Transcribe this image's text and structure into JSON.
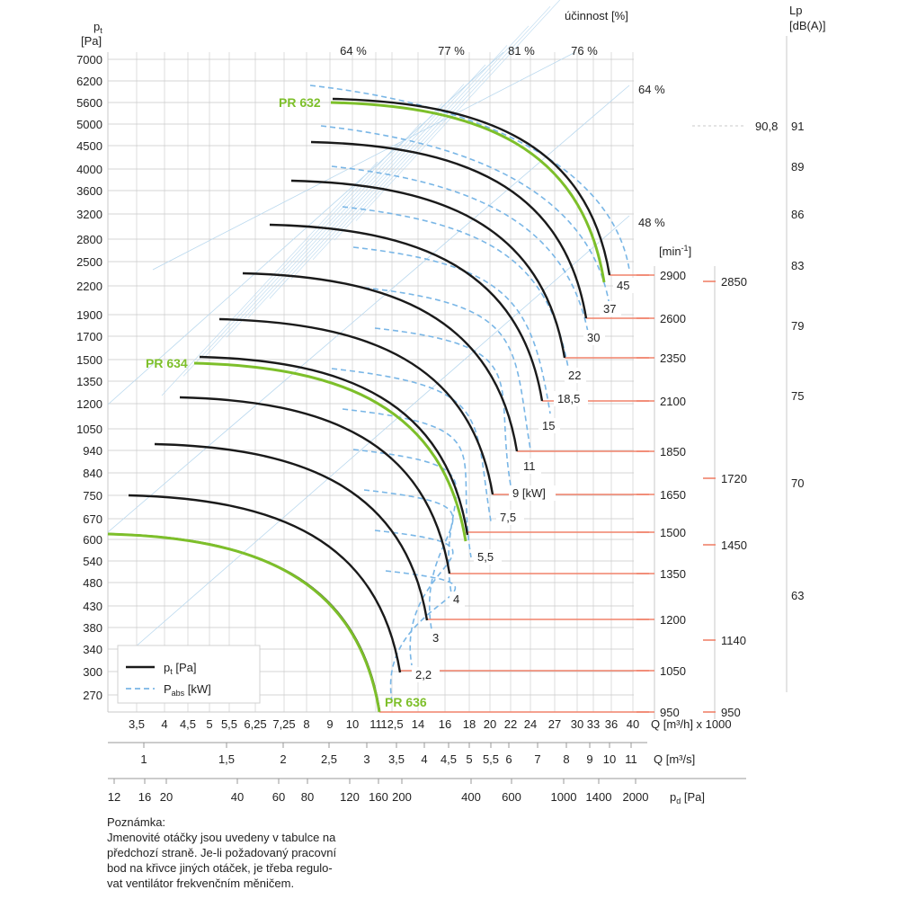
{
  "chart_data": {
    "type": "line",
    "y_label_main": "p",
    "y_label_sub": "t",
    "y_unit": "[Pa]",
    "y_ticks": [
      "7000",
      "6200",
      "5600",
      "5000",
      "4500",
      "4000",
      "3600",
      "3200",
      "2800",
      "2500",
      "2200",
      "1900",
      "1700",
      "1500",
      "1350",
      "1200",
      "1050",
      "940",
      "840",
      "750",
      "670",
      "600",
      "540",
      "480",
      "430",
      "380",
      "340",
      "300",
      "270"
    ],
    "eff_title": "účinnost [%]",
    "eff_top_labels": [
      "64 %",
      "77 %",
      "81 %",
      "76 %"
    ],
    "eff_right_labels": [
      "64 %",
      "48 %"
    ],
    "lp_title": "Lp",
    "lp_unit": "[dB(A)]",
    "lp_ticks": [
      "91",
      "89",
      "86",
      "83",
      "79",
      "75",
      "70",
      "63"
    ],
    "lp_marker": "90,8",
    "rpm_unit_main": "[min",
    "rpm_unit_sup": "-1",
    "rpm_unit_end": "]",
    "rpm_values": [
      "2900",
      "2600",
      "2350",
      "2100",
      "1850",
      "1650",
      "1500",
      "1350",
      "1200",
      "1050",
      "950"
    ],
    "rpm_alt_values": [
      "2850",
      "1720",
      "1450",
      "1140",
      "950"
    ],
    "power_labels": [
      "45",
      "37",
      "30",
      "22",
      "18,5",
      "15",
      "11",
      "9 [kW]",
      "7,5",
      "5,5",
      "4",
      "3",
      "2,2"
    ],
    "fan_models": [
      "PR 632",
      "PR 634",
      "PR 636"
    ],
    "q_h_ticks": [
      "3,5",
      "4",
      "4,5",
      "5",
      "5,5",
      "6,25",
      "7,25",
      "8",
      "9",
      "10",
      "11",
      "12,5",
      "14",
      "16",
      "18",
      "20",
      "22",
      "24",
      "27",
      "30",
      "33",
      "36",
      "40"
    ],
    "q_h_label": "Q [m³/h] x 1000",
    "q_s_ticks": [
      "1",
      "1,5",
      "2",
      "2,5",
      "3",
      "3,5",
      "4",
      "4,5",
      "5",
      "5,5",
      "6",
      "7",
      "8",
      "9",
      "10",
      "11"
    ],
    "q_s_label": "Q [m³/s]",
    "pd_ticks": [
      "12",
      "16",
      "20",
      "40",
      "60",
      "80",
      "120",
      "160",
      "200",
      "400",
      "600",
      "1000",
      "1400",
      "2000"
    ],
    "pd_label_main": "p",
    "pd_label_sub": "d",
    "pd_label_unit": "[Pa]",
    "legend": {
      "pt_main": "p",
      "pt_sub": "t",
      "pt_unit": " [Pa]",
      "pabs_main": "P",
      "pabs_sub": "abs",
      "pabs_unit": " [kW]"
    },
    "colors": {
      "curve": "#1a1a1a",
      "model": "#7dbf2a",
      "power": "#79b6e6",
      "rpm": "#f0826a",
      "grid": "#c8c8c8",
      "eff": "#b9d8ee"
    }
  },
  "note": {
    "title": "Poznámka:",
    "lines": [
      "Jmenovité otáčky jsou uvedeny v tabulce na",
      "předchozí straně. Je-li požadovaný pracovní",
      "bod na křivce jiných otáček, je třeba regulo-",
      "vat ventilátor frekvenčním měničem."
    ]
  }
}
